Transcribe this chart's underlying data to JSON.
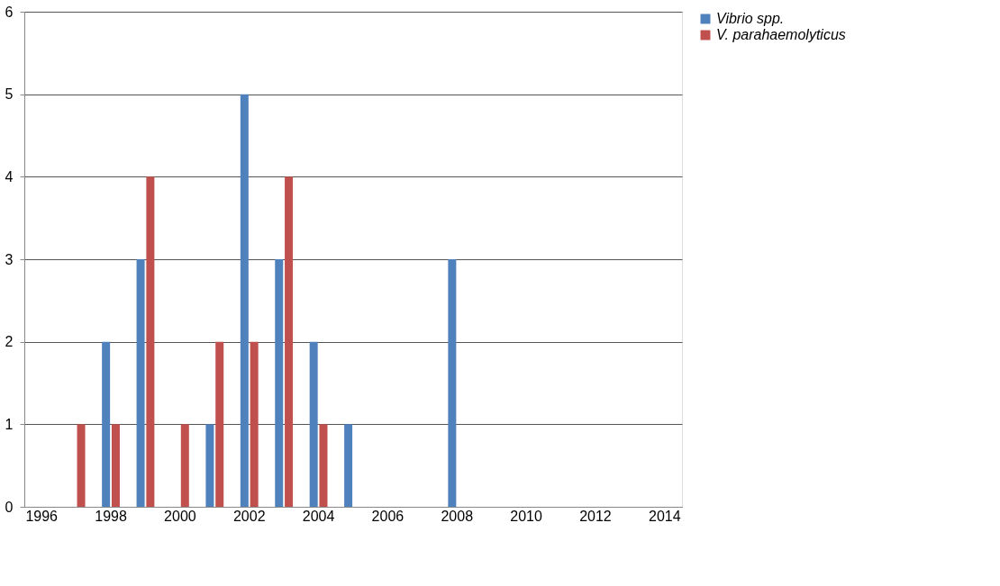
{
  "chart_data": {
    "type": "bar",
    "categories": [
      "1996",
      null,
      "1998",
      null,
      "2000",
      null,
      "2002",
      null,
      "2004",
      null,
      "2006",
      null,
      "2008",
      null,
      "2010",
      null,
      "2012",
      null,
      "2014"
    ],
    "series": [
      {
        "name": "Vibrio spp.",
        "color": "#4f81bd",
        "values": [
          0,
          0,
          2,
          3,
          0,
          1,
          5,
          3,
          2,
          1,
          0,
          0,
          3,
          0,
          0,
          0,
          0,
          0,
          0
        ]
      },
      {
        "name": "V. parahaemolyticus",
        "color": "#c0504d",
        "values": [
          0,
          1,
          1,
          4,
          1,
          2,
          2,
          4,
          1,
          0,
          0,
          0,
          0,
          0,
          0,
          0,
          0,
          0,
          0
        ]
      }
    ],
    "ylim": [
      0,
      6
    ],
    "yticks": [
      0,
      1,
      2,
      3,
      4,
      5,
      6
    ],
    "grid": "y",
    "legend": "right"
  }
}
